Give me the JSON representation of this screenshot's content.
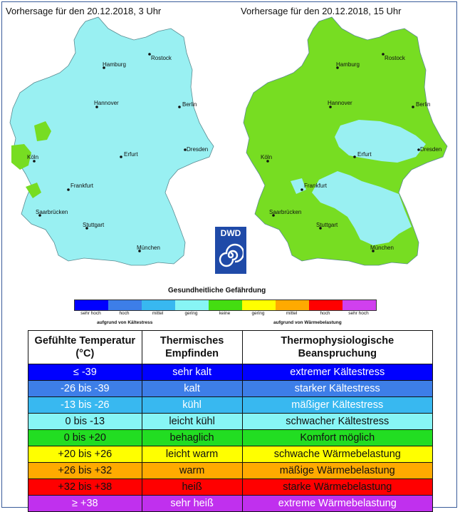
{
  "maps": {
    "left_title": "Vorhersage  für den 20.12.2018,  3 Uhr",
    "right_title": "Vorhersage  für den 20.12.2018,  15 Uhr",
    "cities": [
      "Hamburg",
      "Rostock",
      "Hannover",
      "Berlin",
      "Köln",
      "Erfurt",
      "Dresden",
      "Frankfurt",
      "Saarbrücken",
      "Stuttgart",
      "München"
    ]
  },
  "logo": {
    "text": "DWD"
  },
  "legend": {
    "title": "Gesundheitliche Gefährdung",
    "labels": [
      "sehr hoch",
      "hoch",
      "mittel",
      "gering",
      "keine",
      "gering",
      "mittel",
      "hoch",
      "sehr hoch"
    ],
    "colors": [
      "#0000ff",
      "#3d7ee8",
      "#38b8f0",
      "#87f5f5",
      "#44dd11",
      "#ffff00",
      "#ffaa00",
      "#ff0000",
      "#d040ee"
    ],
    "cold_note": "aufgrund von Kältestress",
    "heat_note": "aufgrund von Wärmebelastung"
  },
  "table": {
    "headers": [
      "Gefühlte Temperatur (°C)",
      "Thermisches Empfinden",
      "Thermophysiologische Beanspruchung"
    ],
    "rows": [
      {
        "temp": "≤ -39",
        "feel": "sehr kalt",
        "load": "extremer Kältestress",
        "bg": "#0000ff",
        "fg": "#ffffff"
      },
      {
        "temp": "-26 bis -39",
        "feel": "kalt",
        "load": "starker Kältestress",
        "bg": "#3d7ee8",
        "fg": "#ffffff"
      },
      {
        "temp": "-13 bis -26",
        "feel": "kühl",
        "load": "mäßiger Kältestress",
        "bg": "#38b8f0",
        "fg": "#ffffff"
      },
      {
        "temp": "0 bis -13",
        "feel": "leicht kühl",
        "load": "schwacher Kältestress",
        "bg": "#87f5f5",
        "fg": "#111111"
      },
      {
        "temp": "0 bis +20",
        "feel": "behaglich",
        "load": "Komfort möglich",
        "bg": "#22dd22",
        "fg": "#111111"
      },
      {
        "temp": "+20 bis +26",
        "feel": "leicht warm",
        "load": "schwache Wärmebelastung",
        "bg": "#ffff00",
        "fg": "#111111"
      },
      {
        "temp": "+26 bis +32",
        "feel": "warm",
        "load": "mäßige Wärmebelastung",
        "bg": "#ffaa00",
        "fg": "#111111"
      },
      {
        "temp": "+32 bis +38",
        "feel": "heiß",
        "load": "starke Wärmebelastung",
        "bg": "#ff0000",
        "fg": "#111111"
      },
      {
        "temp": "≥ +38",
        "feel": "sehr heiß",
        "load": "extreme Wärmebelastung",
        "bg": "#c030ee",
        "fg": "#ffffff"
      }
    ]
  }
}
